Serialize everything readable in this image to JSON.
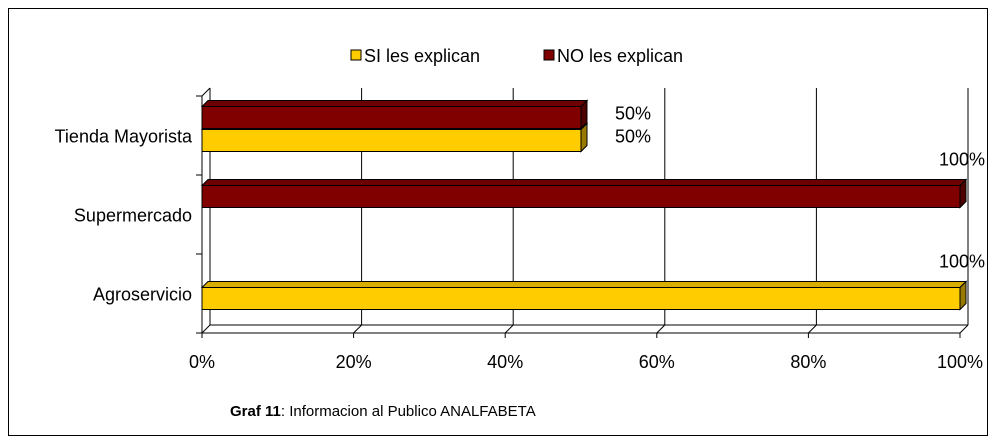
{
  "chart_data": {
    "type": "bar",
    "orientation": "horizontal",
    "categories": [
      "Tienda Mayorista",
      "Supermercado",
      "Agroservicio"
    ],
    "series": [
      {
        "name": "SI les explican",
        "color": "#ffcc00",
        "values": [
          50,
          null,
          100
        ],
        "value_labels": [
          "50%",
          null,
          "100%"
        ]
      },
      {
        "name": "NO les explican",
        "color": "#800000",
        "values": [
          50,
          100,
          null
        ],
        "value_labels": [
          "50%",
          "100%",
          null
        ]
      }
    ],
    "xlim": [
      0,
      100
    ],
    "xticks": [
      {
        "value": 0,
        "label": "0%"
      },
      {
        "value": 20,
        "label": "20%"
      },
      {
        "value": 40,
        "label": "40%"
      },
      {
        "value": 60,
        "label": "60%"
      },
      {
        "value": 80,
        "label": "80%"
      },
      {
        "value": 100,
        "label": "100%"
      }
    ],
    "grid": true,
    "legend": "top",
    "caption_bold": "Graf 11",
    "caption": ": Informacion al Publico ANALFABETA"
  }
}
